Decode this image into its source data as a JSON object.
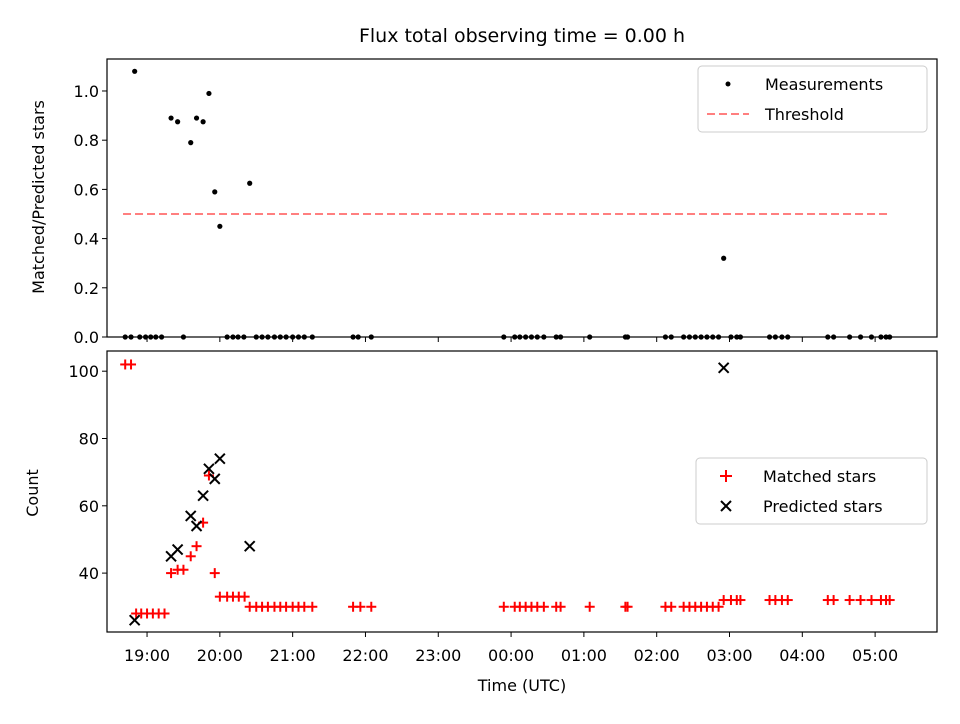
{
  "chart_data": [
    {
      "type": "scatter",
      "title": "Flux total observing time = 0.00 h",
      "xlabel": "",
      "ylabel": "Matched/Predicted stars",
      "xlim": [
        18.45,
        29.85
      ],
      "ylim": [
        0.0,
        1.13
      ],
      "yticks": [
        0.0,
        0.2,
        0.4,
        0.6,
        0.8,
        1.0
      ],
      "ytick_labels": [
        "0.0",
        "0.2",
        "0.4",
        "0.6",
        "0.8",
        "1.0"
      ],
      "xticks": [
        19,
        20,
        21,
        22,
        23,
        24,
        25,
        26,
        27,
        28,
        29
      ],
      "legend_position": "top-right",
      "series": [
        {
          "name": "Measurements",
          "marker": "dot",
          "color": "#000000",
          "points": [
            [
              18.7,
              0
            ],
            [
              18.78,
              0
            ],
            [
              18.83,
              1.08
            ],
            [
              18.9,
              0
            ],
            [
              18.98,
              0
            ],
            [
              19.05,
              0
            ],
            [
              19.12,
              0
            ],
            [
              19.2,
              0
            ],
            [
              19.33,
              0.89
            ],
            [
              19.42,
              0.875
            ],
            [
              19.5,
              0
            ],
            [
              19.6,
              0.79
            ],
            [
              19.68,
              0.89
            ],
            [
              19.77,
              0.875
            ],
            [
              19.85,
              0.99
            ],
            [
              19.93,
              0.59
            ],
            [
              20.0,
              0.45
            ],
            [
              20.1,
              0
            ],
            [
              20.18,
              0
            ],
            [
              20.25,
              0
            ],
            [
              20.33,
              0
            ],
            [
              20.41,
              0.625
            ],
            [
              20.5,
              0
            ],
            [
              20.58,
              0
            ],
            [
              20.66,
              0
            ],
            [
              20.75,
              0
            ],
            [
              20.83,
              0
            ],
            [
              20.91,
              0
            ],
            [
              21.0,
              0
            ],
            [
              21.08,
              0
            ],
            [
              21.16,
              0
            ],
            [
              21.27,
              0
            ],
            [
              21.83,
              0
            ],
            [
              21.9,
              0
            ],
            [
              22.08,
              0
            ],
            [
              23.9,
              0
            ],
            [
              24.05,
              0
            ],
            [
              24.12,
              0
            ],
            [
              24.2,
              0
            ],
            [
              24.28,
              0
            ],
            [
              24.36,
              0
            ],
            [
              24.45,
              0
            ],
            [
              24.62,
              0
            ],
            [
              24.68,
              0
            ],
            [
              25.08,
              0
            ],
            [
              25.57,
              0
            ],
            [
              25.6,
              0
            ],
            [
              26.12,
              0
            ],
            [
              26.2,
              0
            ],
            [
              26.37,
              0
            ],
            [
              26.45,
              0
            ],
            [
              26.53,
              0
            ],
            [
              26.61,
              0
            ],
            [
              26.69,
              0
            ],
            [
              26.77,
              0
            ],
            [
              26.85,
              0
            ],
            [
              26.92,
              0.32
            ],
            [
              27.02,
              0
            ],
            [
              27.1,
              0
            ],
            [
              27.15,
              0
            ],
            [
              27.55,
              0
            ],
            [
              27.63,
              0
            ],
            [
              27.72,
              0
            ],
            [
              27.8,
              0
            ],
            [
              28.35,
              0
            ],
            [
              28.43,
              0
            ],
            [
              28.65,
              0
            ],
            [
              28.8,
              0
            ],
            [
              28.95,
              0
            ],
            [
              29.08,
              0
            ],
            [
              29.15,
              0
            ],
            [
              29.2,
              0
            ]
          ]
        },
        {
          "name": "Threshold",
          "marker": "dashed-line",
          "color": "#ff7f7f",
          "points": [
            [
              18.67,
              0.5
            ],
            [
              29.2,
              0.5
            ]
          ]
        }
      ]
    },
    {
      "type": "scatter",
      "title": "",
      "xlabel": "Time (UTC)",
      "ylabel": "Count",
      "xlim": [
        18.45,
        29.85
      ],
      "ylim": [
        22.5,
        106.0
      ],
      "yticks": [
        40,
        60,
        80,
        100
      ],
      "ytick_labels": [
        "40",
        "60",
        "80",
        "100"
      ],
      "xticks": [
        19,
        20,
        21,
        22,
        23,
        24,
        25,
        26,
        27,
        28,
        29
      ],
      "xtick_labels": [
        "19:00",
        "20:00",
        "21:00",
        "22:00",
        "23:00",
        "00:00",
        "01:00",
        "02:00",
        "03:00",
        "04:00",
        "05:00"
      ],
      "legend_position": "center-right",
      "series": [
        {
          "name": "Matched stars",
          "marker": "plus",
          "color": "#ff0000",
          "points": [
            [
              18.7,
              102
            ],
            [
              18.78,
              102
            ],
            [
              18.85,
              28
            ],
            [
              18.92,
              28
            ],
            [
              19.0,
              28
            ],
            [
              19.08,
              28
            ],
            [
              19.16,
              28
            ],
            [
              19.24,
              28
            ],
            [
              19.33,
              40
            ],
            [
              19.42,
              41
            ],
            [
              19.5,
              41
            ],
            [
              19.6,
              45
            ],
            [
              19.68,
              48
            ],
            [
              19.77,
              55
            ],
            [
              19.85,
              69
            ],
            [
              19.93,
              40
            ],
            [
              20.0,
              33
            ],
            [
              20.1,
              33
            ],
            [
              20.18,
              33
            ],
            [
              20.26,
              33
            ],
            [
              20.34,
              33
            ],
            [
              20.41,
              30
            ],
            [
              20.5,
              30
            ],
            [
              20.58,
              30
            ],
            [
              20.66,
              30
            ],
            [
              20.75,
              30
            ],
            [
              20.83,
              30
            ],
            [
              20.91,
              30
            ],
            [
              21.0,
              30
            ],
            [
              21.08,
              30
            ],
            [
              21.16,
              30
            ],
            [
              21.27,
              30
            ],
            [
              21.83,
              30
            ],
            [
              21.93,
              30
            ],
            [
              22.08,
              30
            ],
            [
              23.9,
              30
            ],
            [
              24.05,
              30
            ],
            [
              24.12,
              30
            ],
            [
              24.2,
              30
            ],
            [
              24.28,
              30
            ],
            [
              24.36,
              30
            ],
            [
              24.45,
              30
            ],
            [
              24.62,
              30
            ],
            [
              24.68,
              30
            ],
            [
              25.08,
              30
            ],
            [
              25.57,
              30
            ],
            [
              25.6,
              30
            ],
            [
              26.12,
              30
            ],
            [
              26.2,
              30
            ],
            [
              26.37,
              30
            ],
            [
              26.45,
              30
            ],
            [
              26.53,
              30
            ],
            [
              26.61,
              30
            ],
            [
              26.69,
              30
            ],
            [
              26.77,
              30
            ],
            [
              26.85,
              30
            ],
            [
              26.92,
              32
            ],
            [
              27.02,
              32
            ],
            [
              27.1,
              32
            ],
            [
              27.15,
              32
            ],
            [
              27.55,
              32
            ],
            [
              27.63,
              32
            ],
            [
              27.72,
              32
            ],
            [
              27.8,
              32
            ],
            [
              28.35,
              32
            ],
            [
              28.43,
              32
            ],
            [
              28.65,
              32
            ],
            [
              28.8,
              32
            ],
            [
              28.95,
              32
            ],
            [
              29.08,
              32
            ],
            [
              29.15,
              32
            ],
            [
              29.2,
              32
            ]
          ]
        },
        {
          "name": "Predicted stars",
          "marker": "x",
          "color": "#000000",
          "points": [
            [
              18.83,
              26
            ],
            [
              19.33,
              45
            ],
            [
              19.42,
              47
            ],
            [
              19.6,
              57
            ],
            [
              19.68,
              54
            ],
            [
              19.77,
              63
            ],
            [
              19.85,
              71
            ],
            [
              19.93,
              68
            ],
            [
              20.0,
              74
            ],
            [
              20.41,
              48
            ],
            [
              26.92,
              101
            ]
          ]
        }
      ]
    }
  ]
}
